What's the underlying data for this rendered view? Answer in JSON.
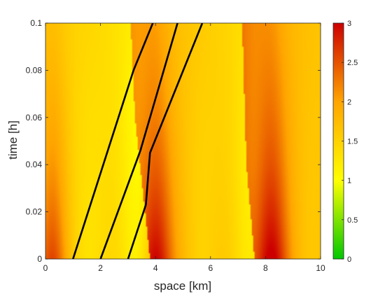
{
  "chart_data": {
    "type": "heatmap",
    "title": "",
    "xlabel": "space [km]",
    "ylabel": "time [h]",
    "xlim": [
      0,
      10
    ],
    "ylim": [
      0,
      0.1
    ],
    "x_ticks": [
      "0",
      "2",
      "4",
      "6",
      "8",
      "10"
    ],
    "y_ticks": [
      "0",
      "0.02",
      "0.04",
      "0.06",
      "0.08",
      "0.1"
    ],
    "colorbar": {
      "range": [
        0,
        3
      ],
      "ticks": [
        "0",
        "0.5",
        "1",
        "1.5",
        "2",
        "2.5",
        "3"
      ],
      "colormap": [
        "#00c800",
        "#ffff00",
        "#ffa500",
        "#cc0000"
      ]
    },
    "field_features": {
      "peaks_at_t0_km": [
        0.2,
        4.0,
        8.2
      ],
      "moving_fronts": [
        {
          "name": "front-1",
          "points": [
            [
              3.8,
              0.0
            ],
            [
              3.25,
              0.06
            ],
            [
              3.1,
              0.1
            ]
          ]
        },
        {
          "name": "front-2",
          "points": [
            [
              7.6,
              0.0
            ],
            [
              7.3,
              0.04
            ],
            [
              7.15,
              0.1
            ]
          ]
        }
      ]
    },
    "series": [
      {
        "color": "#000000",
        "points": [
          [
            1.0,
            0.0
          ],
          [
            3.2,
            0.08
          ],
          [
            3.9,
            0.1
          ]
        ]
      },
      {
        "color": "#000000",
        "points": [
          [
            2.0,
            0.0
          ],
          [
            3.45,
            0.046
          ],
          [
            4.8,
            0.1
          ]
        ]
      },
      {
        "color": "#000000",
        "points": [
          [
            3.0,
            0.0
          ],
          [
            3.65,
            0.023
          ],
          [
            3.8,
            0.045
          ],
          [
            5.7,
            0.1
          ]
        ]
      }
    ]
  }
}
